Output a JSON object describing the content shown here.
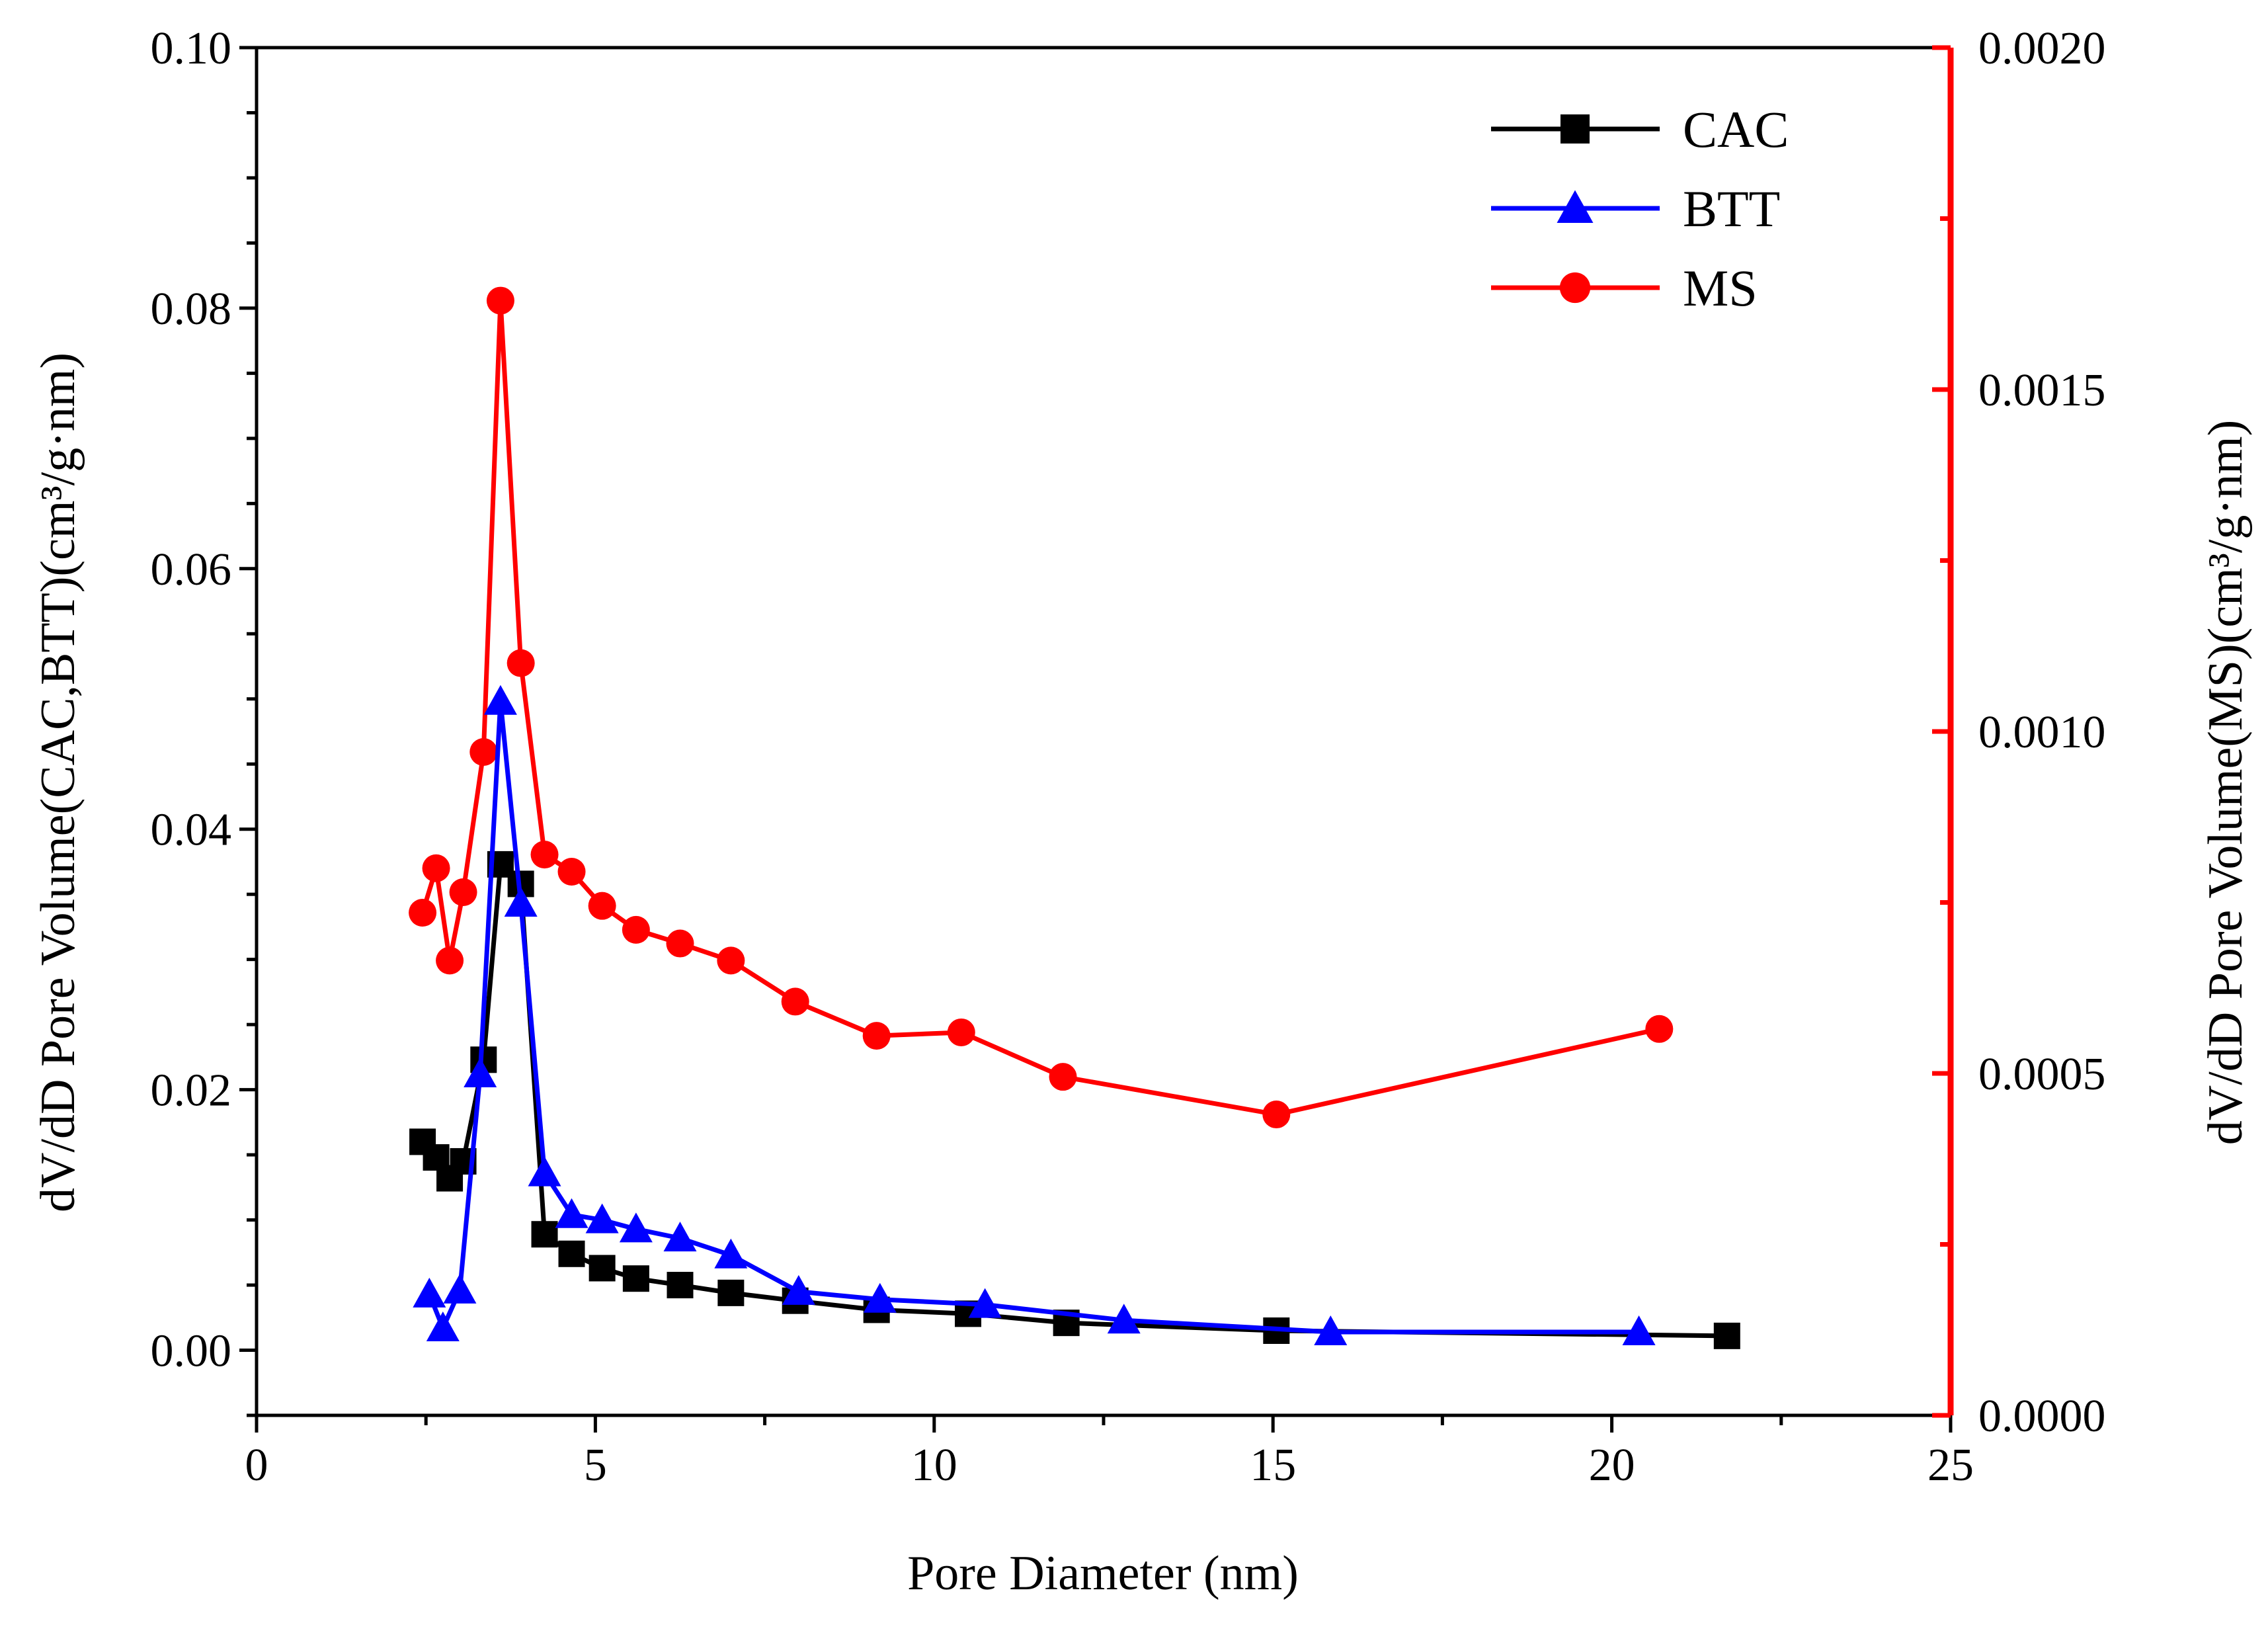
{
  "chart_data": {
    "type": "line",
    "xlabel": "Pore Diameter (nm)",
    "ylabel_left": "dV/dD Pore Volume(CAC,BTT)(cm³/g·nm)",
    "ylabel_right": "dV/dD Pore Volume(MS)(cm³/g·nm)",
    "xlim": [
      0,
      25
    ],
    "ylim_left": [
      -0.005,
      0.1
    ],
    "ylim_right": [
      0.0,
      0.002
    ],
    "x_ticks": [
      "0",
      "5",
      "10",
      "15",
      "20",
      "25"
    ],
    "y_left_ticks": [
      "0.00",
      "0.02",
      "0.04",
      "0.06",
      "0.08",
      "0.10"
    ],
    "y_right_ticks": [
      "0.0000",
      "0.0005",
      "0.0010",
      "0.0015",
      "0.0020"
    ],
    "legend_position": "top-right",
    "colors": {
      "CAC": "#000000",
      "BTT": "#0000ff",
      "MS": "#ff0000",
      "right_axis": "#ff0000"
    },
    "series": [
      {
        "name": "CAC",
        "axis": "left",
        "marker": "square",
        "x": [
          2.45,
          2.65,
          2.85,
          3.05,
          3.35,
          3.6,
          3.9,
          4.25,
          4.65,
          5.1,
          5.6,
          6.25,
          7.0,
          7.95,
          9.15,
          10.5,
          11.95,
          15.05,
          21.7
        ],
        "y": [
          0.016,
          0.0148,
          0.0132,
          0.0145,
          0.0223,
          0.0373,
          0.0358,
          0.0089,
          0.0074,
          0.0063,
          0.0055,
          0.005,
          0.0044,
          0.0038,
          0.0031,
          0.0028,
          0.0021,
          0.0015,
          0.0011
        ]
      },
      {
        "name": "BTT",
        "axis": "left",
        "marker": "triangle",
        "x": [
          2.55,
          2.75,
          3.0,
          3.3,
          3.6,
          3.9,
          4.25,
          4.65,
          5.1,
          5.6,
          6.25,
          7.0,
          8.0,
          9.2,
          10.75,
          12.8,
          15.85,
          20.4
        ],
        "y": [
          0.0043,
          0.0017,
          0.0046,
          0.0212,
          0.0498,
          0.0343,
          0.0136,
          0.0104,
          0.01,
          0.0093,
          0.0086,
          0.0073,
          0.0045,
          0.0039,
          0.0035,
          0.0023,
          0.0014,
          0.0014
        ]
      },
      {
        "name": "MS",
        "axis": "right",
        "marker": "circle",
        "x": [
          2.45,
          2.65,
          2.85,
          3.05,
          3.35,
          3.6,
          3.9,
          4.25,
          4.65,
          5.1,
          5.6,
          6.25,
          7.0,
          7.95,
          9.15,
          10.4,
          11.9,
          15.05,
          20.7
        ],
        "y": [
          0.000735,
          0.0008,
          0.000665,
          0.000765,
          0.00097,
          0.00163,
          0.0011,
          0.00082,
          0.000795,
          0.000745,
          0.00071,
          0.00069,
          0.000665,
          0.000605,
          0.000555,
          0.00056,
          0.000495,
          0.00044,
          0.000565
        ]
      }
    ]
  }
}
